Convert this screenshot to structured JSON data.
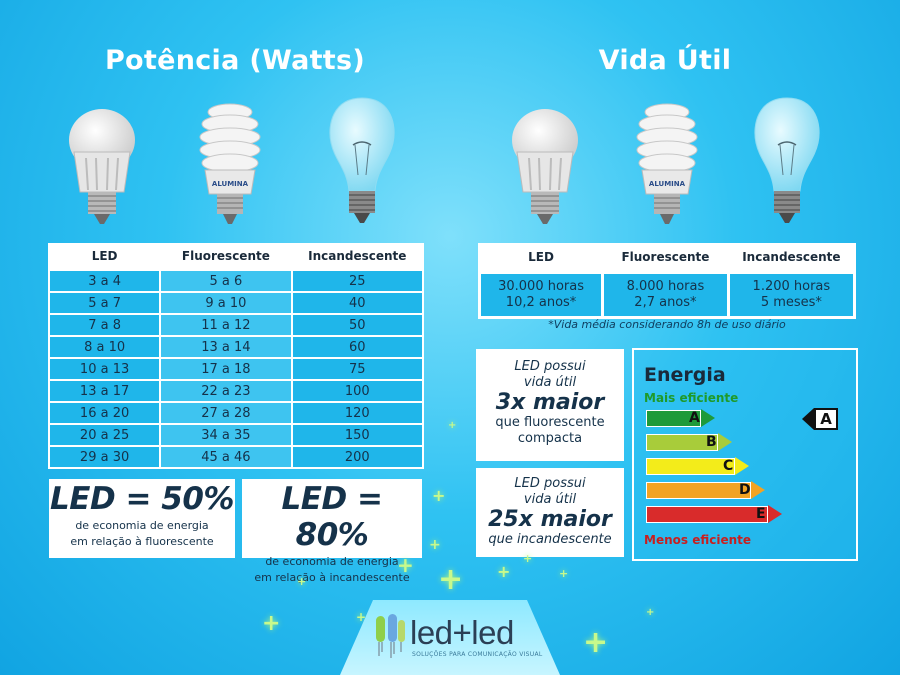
{
  "sections": {
    "power_title": "Potência (Watts)",
    "life_title": "Vida Útil"
  },
  "power_table": {
    "headers": [
      "LED",
      "Fluorescente",
      "Incandescente"
    ],
    "rows": [
      [
        "3 a 4",
        "5 a 6",
        "25"
      ],
      [
        "5 a 7",
        "9 a 10",
        "40"
      ],
      [
        "7 a 8",
        "11 a 12",
        "50"
      ],
      [
        "8 a 10",
        "13 a 14",
        "60"
      ],
      [
        "10 a 13",
        "17 a 18",
        "75"
      ],
      [
        "13 a 17",
        "22 a 23",
        "100"
      ],
      [
        "16 a 20",
        "27 a 28",
        "120"
      ],
      [
        "20 a 25",
        "34 a 35",
        "150"
      ],
      [
        "29 a 30",
        "45 a 46",
        "200"
      ]
    ]
  },
  "life_table": {
    "headers": [
      "LED",
      "Fluorescente",
      "Incandescente"
    ],
    "cells": [
      {
        "line1": "30.000 horas",
        "line2": "10,2 anos*"
      },
      {
        "line1": "8.000 horas",
        "line2": "2,7 anos*"
      },
      {
        "line1": "1.200 horas",
        "line2": "5 meses*"
      }
    ],
    "footnote": "*Vida média considerando 8h de uso diário"
  },
  "economy": [
    {
      "big": "LED = 50%",
      "line1": "de economia de energia",
      "line2": "em relação à fluorescente"
    },
    {
      "big": "LED = 80%",
      "line1": "de economia de energia",
      "line2": "em relação à incandescente"
    }
  ],
  "compare": [
    {
      "line1": "LED possui",
      "line2": "vida útil",
      "big": "3x maior",
      "line3": "que fluorescente",
      "line4": "compacta"
    },
    {
      "line1": "LED possui",
      "line2": "vida útil",
      "big": "25x maior",
      "line3": "que incandescente",
      "line4": ""
    }
  ],
  "energy": {
    "title": "Energia",
    "top_label": "Mais eficiente",
    "bottom_label": "Menos eficiente",
    "grades": [
      {
        "letter": "A",
        "color": "#1e9a3a",
        "fill": 0.2
      },
      {
        "letter": "B",
        "color": "#a8cc3a",
        "fill": 0.4
      },
      {
        "letter": "C",
        "color": "#f3ec1a",
        "fill": 0.6
      },
      {
        "letter": "D",
        "color": "#f2a323",
        "fill": 0.8
      },
      {
        "letter": "E",
        "color": "#d92b2b",
        "fill": 1.0
      }
    ],
    "rating": "A"
  },
  "logo": {
    "text": "led+led",
    "tagline": "SOLUÇÕES PARA COMUNICAÇÃO VISUAL"
  },
  "bulb_brand": "ALUMINA",
  "colors": {
    "background": "#2fc2f2",
    "cell": "#1fb6ea",
    "text_dark": "#15324a"
  }
}
